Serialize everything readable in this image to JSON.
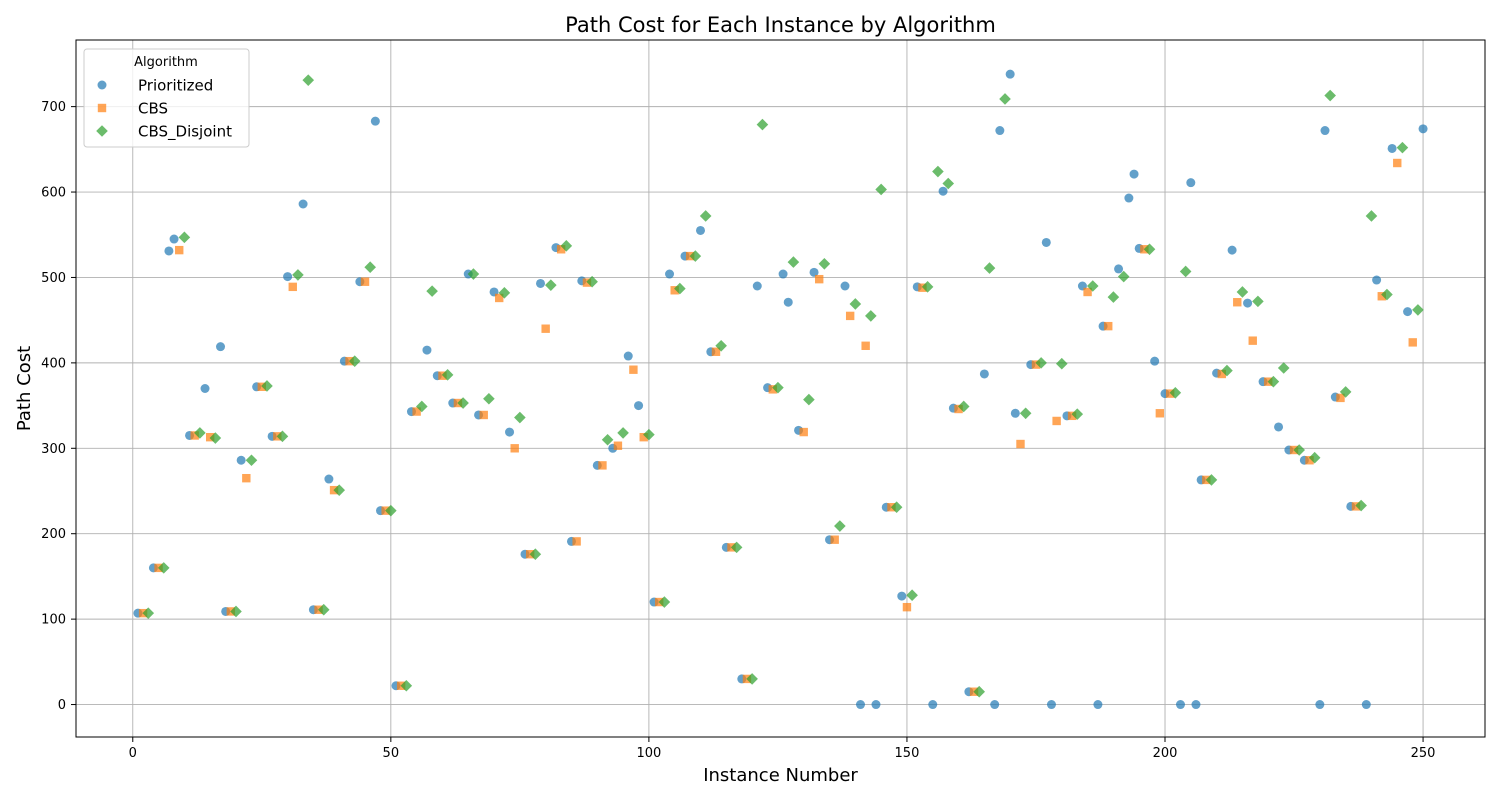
{
  "chart_data": {
    "type": "scatter",
    "title": "Path Cost for Each Instance by Algorithm",
    "xlabel": "Instance Number",
    "ylabel": "Path Cost",
    "xlim": [
      -11,
      262
    ],
    "ylim": [
      -38,
      778
    ],
    "xticks": [
      0,
      50,
      100,
      150,
      200,
      250
    ],
    "yticks": [
      0,
      100,
      200,
      300,
      400,
      500,
      600,
      700
    ],
    "grid": true,
    "legend": {
      "title": "Algorithm",
      "position": "top-left"
    },
    "series": [
      {
        "name": "Prioritized",
        "marker": "circle",
        "color": "#1f77b4",
        "points": [
          [
            1,
            107
          ],
          [
            4,
            160
          ],
          [
            7,
            531
          ],
          [
            8,
            545
          ],
          [
            11,
            315
          ],
          [
            14,
            370
          ],
          [
            17,
            419
          ],
          [
            18,
            109
          ],
          [
            21,
            286
          ],
          [
            24,
            372
          ],
          [
            27,
            314
          ],
          [
            30,
            501
          ],
          [
            33,
            586
          ],
          [
            35,
            111
          ],
          [
            38,
            264
          ],
          [
            41,
            402
          ],
          [
            44,
            495
          ],
          [
            47,
            683
          ],
          [
            48,
            227
          ],
          [
            51,
            22
          ],
          [
            54,
            343
          ],
          [
            57,
            415
          ],
          [
            59,
            385
          ],
          [
            62,
            353
          ],
          [
            65,
            504
          ],
          [
            67,
            339
          ],
          [
            70,
            483
          ],
          [
            73,
            319
          ],
          [
            76,
            176
          ],
          [
            79,
            493
          ],
          [
            82,
            535
          ],
          [
            85,
            191
          ],
          [
            87,
            496
          ],
          [
            90,
            280
          ],
          [
            93,
            300
          ],
          [
            96,
            408
          ],
          [
            98,
            350
          ],
          [
            101,
            120
          ],
          [
            104,
            504
          ],
          [
            107,
            525
          ],
          [
            110,
            555
          ],
          [
            112,
            413
          ],
          [
            115,
            184
          ],
          [
            118,
            30
          ],
          [
            121,
            490
          ],
          [
            123,
            371
          ],
          [
            126,
            504
          ],
          [
            127,
            471
          ],
          [
            129,
            321
          ],
          [
            132,
            506
          ],
          [
            135,
            193
          ],
          [
            138,
            490
          ],
          [
            141,
            0
          ],
          [
            144,
            0
          ],
          [
            146,
            231
          ],
          [
            149,
            127
          ],
          [
            152,
            489
          ],
          [
            155,
            0
          ],
          [
            157,
            601
          ],
          [
            159,
            347
          ],
          [
            162,
            15
          ],
          [
            165,
            387
          ],
          [
            167,
            0
          ],
          [
            168,
            672
          ],
          [
            170,
            738
          ],
          [
            171,
            341
          ],
          [
            174,
            398
          ],
          [
            177,
            541
          ],
          [
            178,
            0
          ],
          [
            181,
            338
          ],
          [
            184,
            490
          ],
          [
            187,
            0
          ],
          [
            188,
            443
          ],
          [
            191,
            510
          ],
          [
            193,
            593
          ],
          [
            194,
            621
          ],
          [
            195,
            534
          ],
          [
            198,
            402
          ],
          [
            200,
            364
          ],
          [
            203,
            0
          ],
          [
            205,
            611
          ],
          [
            206,
            0
          ],
          [
            207,
            263
          ],
          [
            210,
            388
          ],
          [
            213,
            532
          ],
          [
            216,
            470
          ],
          [
            219,
            378
          ],
          [
            222,
            325
          ],
          [
            224,
            298
          ],
          [
            227,
            286
          ],
          [
            230,
            0
          ],
          [
            231,
            672
          ],
          [
            233,
            360
          ],
          [
            236,
            232
          ],
          [
            239,
            0
          ],
          [
            241,
            497
          ],
          [
            244,
            651
          ],
          [
            247,
            460
          ],
          [
            250,
            674
          ]
        ]
      },
      {
        "name": "CBS",
        "marker": "square",
        "color": "#ff7f0e",
        "points": [
          [
            2,
            107
          ],
          [
            5,
            160
          ],
          [
            9,
            532
          ],
          [
            12,
            315
          ],
          [
            15,
            313
          ],
          [
            19,
            109
          ],
          [
            22,
            265
          ],
          [
            25,
            372
          ],
          [
            28,
            314
          ],
          [
            31,
            489
          ],
          [
            36,
            111
          ],
          [
            39,
            251
          ],
          [
            42,
            402
          ],
          [
            45,
            495
          ],
          [
            49,
            227
          ],
          [
            52,
            22
          ],
          [
            55,
            343
          ],
          [
            60,
            385
          ],
          [
            63,
            353
          ],
          [
            68,
            339
          ],
          [
            71,
            476
          ],
          [
            74,
            300
          ],
          [
            77,
            176
          ],
          [
            80,
            440
          ],
          [
            83,
            533
          ],
          [
            86,
            191
          ],
          [
            88,
            494
          ],
          [
            91,
            280
          ],
          [
            94,
            303
          ],
          [
            97,
            392
          ],
          [
            99,
            313
          ],
          [
            102,
            120
          ],
          [
            105,
            485
          ],
          [
            108,
            525
          ],
          [
            113,
            413
          ],
          [
            116,
            184
          ],
          [
            119,
            30
          ],
          [
            124,
            369
          ],
          [
            130,
            319
          ],
          [
            133,
            498
          ],
          [
            136,
            193
          ],
          [
            139,
            455
          ],
          [
            142,
            420
          ],
          [
            147,
            231
          ],
          [
            150,
            114
          ],
          [
            153,
            488
          ],
          [
            160,
            346
          ],
          [
            163,
            15
          ],
          [
            172,
            305
          ],
          [
            175,
            398
          ],
          [
            179,
            332
          ],
          [
            182,
            338
          ],
          [
            185,
            483
          ],
          [
            189,
            443
          ],
          [
            196,
            533
          ],
          [
            199,
            341
          ],
          [
            201,
            364
          ],
          [
            208,
            263
          ],
          [
            211,
            387
          ],
          [
            214,
            471
          ],
          [
            217,
            426
          ],
          [
            220,
            378
          ],
          [
            225,
            298
          ],
          [
            228,
            286
          ],
          [
            234,
            359
          ],
          [
            237,
            232
          ],
          [
            242,
            478
          ],
          [
            245,
            634
          ],
          [
            248,
            424
          ]
        ]
      },
      {
        "name": "CBS_Disjoint",
        "marker": "diamond",
        "color": "#2ca02c",
        "points": [
          [
            3,
            107
          ],
          [
            6,
            160
          ],
          [
            10,
            547
          ],
          [
            13,
            318
          ],
          [
            16,
            312
          ],
          [
            20,
            109
          ],
          [
            23,
            286
          ],
          [
            26,
            373
          ],
          [
            29,
            314
          ],
          [
            32,
            503
          ],
          [
            34,
            731
          ],
          [
            37,
            111
          ],
          [
            40,
            251
          ],
          [
            43,
            402
          ],
          [
            46,
            512
          ],
          [
            50,
            227
          ],
          [
            53,
            22
          ],
          [
            56,
            349
          ],
          [
            58,
            484
          ],
          [
            61,
            386
          ],
          [
            64,
            353
          ],
          [
            66,
            504
          ],
          [
            69,
            358
          ],
          [
            72,
            482
          ],
          [
            75,
            336
          ],
          [
            78,
            176
          ],
          [
            81,
            491
          ],
          [
            84,
            537
          ],
          [
            89,
            495
          ],
          [
            92,
            310
          ],
          [
            95,
            318
          ],
          [
            100,
            316
          ],
          [
            103,
            120
          ],
          [
            106,
            487
          ],
          [
            109,
            525
          ],
          [
            111,
            572
          ],
          [
            114,
            420
          ],
          [
            117,
            184
          ],
          [
            120,
            30
          ],
          [
            122,
            679
          ],
          [
            125,
            371
          ],
          [
            128,
            518
          ],
          [
            131,
            357
          ],
          [
            134,
            516
          ],
          [
            137,
            209
          ],
          [
            140,
            469
          ],
          [
            143,
            455
          ],
          [
            145,
            603
          ],
          [
            148,
            231
          ],
          [
            151,
            128
          ],
          [
            154,
            489
          ],
          [
            156,
            624
          ],
          [
            158,
            610
          ],
          [
            161,
            349
          ],
          [
            164,
            15
          ],
          [
            166,
            511
          ],
          [
            169,
            709
          ],
          [
            173,
            341
          ],
          [
            176,
            400
          ],
          [
            180,
            399
          ],
          [
            183,
            340
          ],
          [
            186,
            490
          ],
          [
            190,
            477
          ],
          [
            192,
            501
          ],
          [
            197,
            533
          ],
          [
            202,
            365
          ],
          [
            204,
            507
          ],
          [
            209,
            263
          ],
          [
            212,
            391
          ],
          [
            215,
            483
          ],
          [
            218,
            472
          ],
          [
            221,
            378
          ],
          [
            223,
            394
          ],
          [
            226,
            298
          ],
          [
            229,
            289
          ],
          [
            232,
            713
          ],
          [
            235,
            366
          ],
          [
            238,
            233
          ],
          [
            240,
            572
          ],
          [
            243,
            480
          ],
          [
            246,
            652
          ],
          [
            249,
            462
          ]
        ]
      }
    ]
  }
}
